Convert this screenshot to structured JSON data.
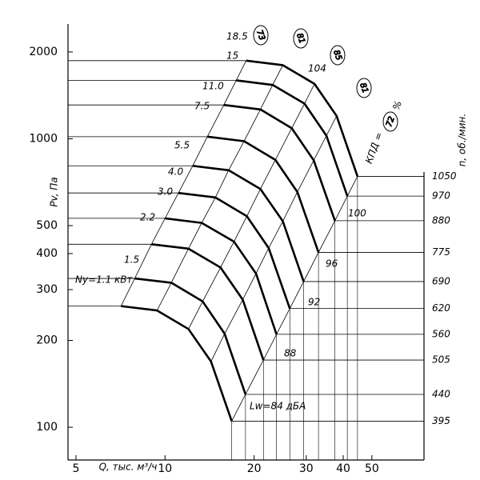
{
  "chart_data": {
    "type": "line",
    "log_scale": true,
    "grid": false,
    "y_label": "Pv, Па",
    "x_label": "Q, тыс. м³/ч",
    "y2_label": "n, об./мин.",
    "xlim": [
      4.7,
      75
    ],
    "ylim": [
      77,
      2500
    ],
    "xticks": [
      5,
      10,
      20,
      30,
      40,
      50
    ],
    "yticks": [
      100,
      200,
      300,
      400,
      500,
      1000,
      2000
    ],
    "power_labels": [
      "18.5",
      "15",
      "11.0",
      "7.5",
      "5.5",
      "4.0",
      "3.0",
      "2.2",
      "1.5",
      "Ny=1.1 кВт"
    ],
    "efficiency_labels": [
      "73",
      "81",
      "85",
      "81",
      "72"
    ],
    "efficiency_prefix": "КПД =",
    "efficiency_unit": "%",
    "noise_labels": [
      "Lw=84 дБА",
      "88",
      "92",
      "96",
      "100",
      "104"
    ],
    "series": [
      {
        "name": "1050",
        "color": "#000000",
        "x": [
          18.8,
          25,
          32,
          38,
          44.7
        ],
        "values": [
          1866,
          1800,
          1550,
          1200,
          741
        ]
      },
      {
        "name": "970",
        "color": "#000000",
        "x": [
          17.4,
          23.1,
          29.6,
          35.1,
          41.3
        ],
        "values": [
          1594,
          1537,
          1324,
          1025,
          633
        ]
      },
      {
        "name": "880",
        "color": "#000000",
        "x": [
          15.8,
          21.0,
          26.8,
          31.8,
          37.5
        ],
        "values": [
          1310,
          1264,
          1088,
          842,
          520
        ]
      },
      {
        "name": "775",
        "color": "#000000",
        "x": [
          13.9,
          18.5,
          23.6,
          28.0,
          33.0
        ],
        "values": [
          1017,
          981,
          845,
          654,
          404
        ]
      },
      {
        "name": "690",
        "color": "#000000",
        "x": [
          12.4,
          16.4,
          21.0,
          25.0,
          29.4
        ],
        "values": [
          806,
          778,
          670,
          518,
          320
        ]
      },
      {
        "name": "620",
        "color": "#000000",
        "x": [
          11.1,
          14.8,
          18.9,
          22.4,
          26.4
        ],
        "values": [
          649,
          626,
          539,
          418,
          258
        ]
      },
      {
        "name": "560",
        "color": "#000000",
        "x": [
          10.0,
          13.3,
          17.1,
          20.3,
          23.8
        ],
        "values": [
          530,
          511,
          440,
          341,
          210
        ]
      },
      {
        "name": "505",
        "color": "#000000",
        "x": [
          9.0,
          12.0,
          15.4,
          18.3,
          21.5
        ],
        "values": [
          431,
          416,
          358,
          277,
          171
        ]
      },
      {
        "name": "440",
        "color": "#000000",
        "x": [
          7.9,
          10.5,
          13.4,
          15.9,
          18.7
        ],
        "values": [
          328,
          317,
          273,
          211,
          130
        ]
      },
      {
        "name": "395",
        "color": "#000000",
        "x": [
          7.1,
          9.4,
          12.0,
          14.3,
          16.8
        ],
        "values": [
          263,
          254,
          219,
          169,
          105
        ]
      }
    ]
  }
}
